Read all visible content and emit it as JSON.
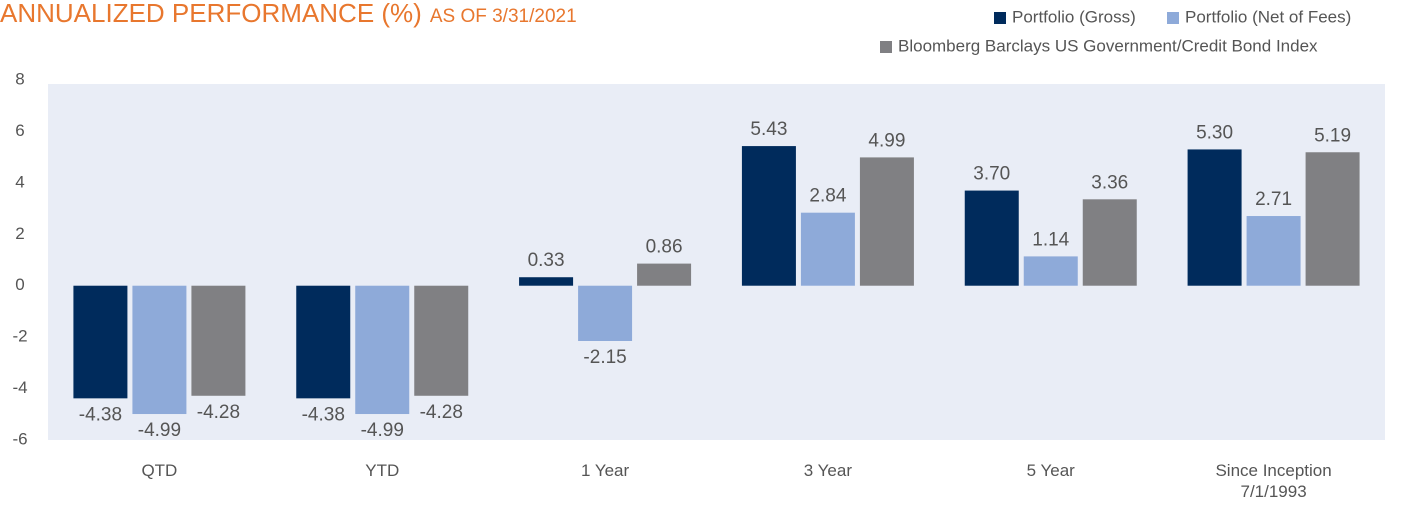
{
  "chart_data": {
    "type": "bar",
    "title": "ANNUALIZED PERFORMANCE (%)",
    "subtitle": "AS OF 3/31/2021",
    "categories": [
      "QTD",
      "YTD",
      "1 Year",
      "3 Year",
      "5 Year",
      "Since Inception\n7/1/1993"
    ],
    "series": [
      {
        "name": "Portfolio (Gross)",
        "color": "#002b5c",
        "values": [
          -4.38,
          -4.38,
          0.33,
          5.43,
          3.7,
          5.3
        ],
        "value_labels": [
          "-4.38",
          "-4.38",
          "0.33",
          "5.43",
          "3.70",
          "5.30"
        ]
      },
      {
        "name": "Portfolio (Net of Fees)",
        "color": "#8eaad9",
        "values": [
          -4.99,
          -4.99,
          -2.15,
          2.84,
          1.14,
          2.71
        ],
        "value_labels": [
          "-4.99",
          "-4.99",
          "-2.15",
          "2.84",
          "1.14",
          "2.71"
        ]
      },
      {
        "name": "Bloomberg Barclays US Government/Credit Bond Index",
        "color": "#808083",
        "values": [
          -4.28,
          -4.28,
          0.86,
          4.99,
          3.36,
          5.19
        ],
        "value_labels": [
          "-4.28",
          "-4.28",
          "0.86",
          "4.99",
          "3.36",
          "5.19"
        ]
      }
    ],
    "ylim": [
      -6,
      8
    ],
    "yticks": [
      -6,
      -4,
      -2,
      0,
      2,
      4,
      6,
      8
    ],
    "legend": "top-right"
  }
}
